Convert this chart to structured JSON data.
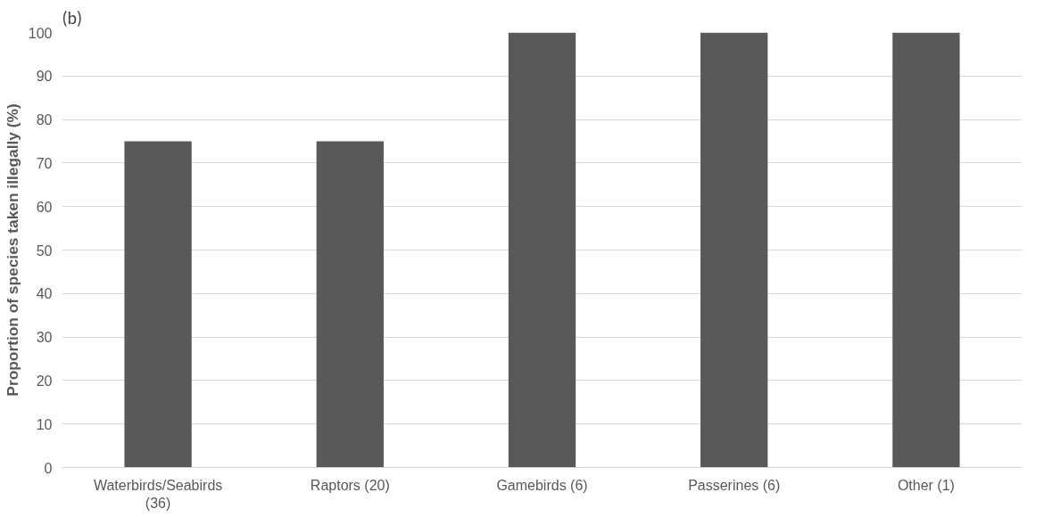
{
  "chart_data": {
    "type": "bar",
    "title": "(b)",
    "ylabel": "Proportion of species taken illegally (%)",
    "categories": [
      "Waterbirds/Seabirds (36)",
      "Raptors (20)",
      "Gamebirds (6)",
      "Passerines (6)",
      "Other (1)"
    ],
    "values": [
      75,
      75,
      100,
      100,
      100
    ],
    "color": "#595959",
    "ylim": [
      0,
      100
    ],
    "yticks": [
      0,
      10,
      20,
      30,
      40,
      50,
      60,
      70,
      80,
      90,
      100
    ],
    "grid": "y"
  }
}
